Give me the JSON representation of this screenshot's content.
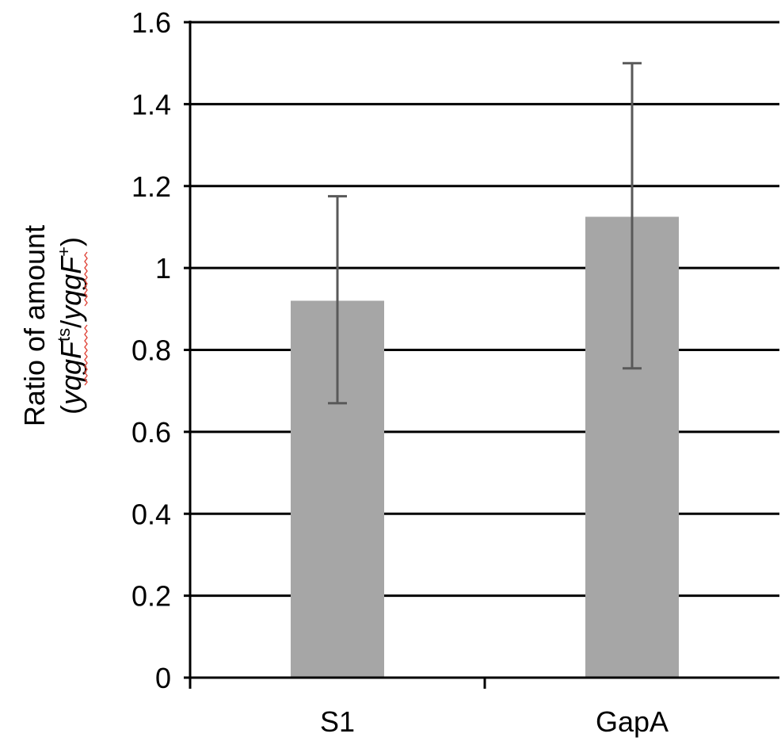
{
  "chart_data": {
    "type": "bar",
    "categories": [
      "S1",
      "GapA"
    ],
    "values": [
      0.92,
      1.125
    ],
    "error_low": [
      0.67,
      0.755
    ],
    "error_high": [
      1.175,
      1.5
    ],
    "ylim": [
      0,
      1.6
    ],
    "yticks": [
      "0",
      "0.2",
      "0.4",
      "0.6",
      "0.8",
      "1",
      "1.2",
      "1.4",
      "1.6"
    ],
    "ytick_values": [
      0,
      0.2,
      0.4,
      0.6,
      0.8,
      1,
      1.2,
      1.4,
      1.6
    ],
    "ylabel_line1": "Ratio of amount",
    "ylabel_line2": {
      "open": "(",
      "gene1": "yqgF",
      "sup1": "ts",
      "slash": "/",
      "gene2": "yqgF",
      "sup2": "+",
      "close": ")"
    },
    "xlabel": "",
    "grid": true,
    "legend": "none",
    "colors": {
      "bar": "#a6a6a6",
      "error": "#595959",
      "grid": "#000000",
      "spellcheck": "#e0463a"
    }
  }
}
